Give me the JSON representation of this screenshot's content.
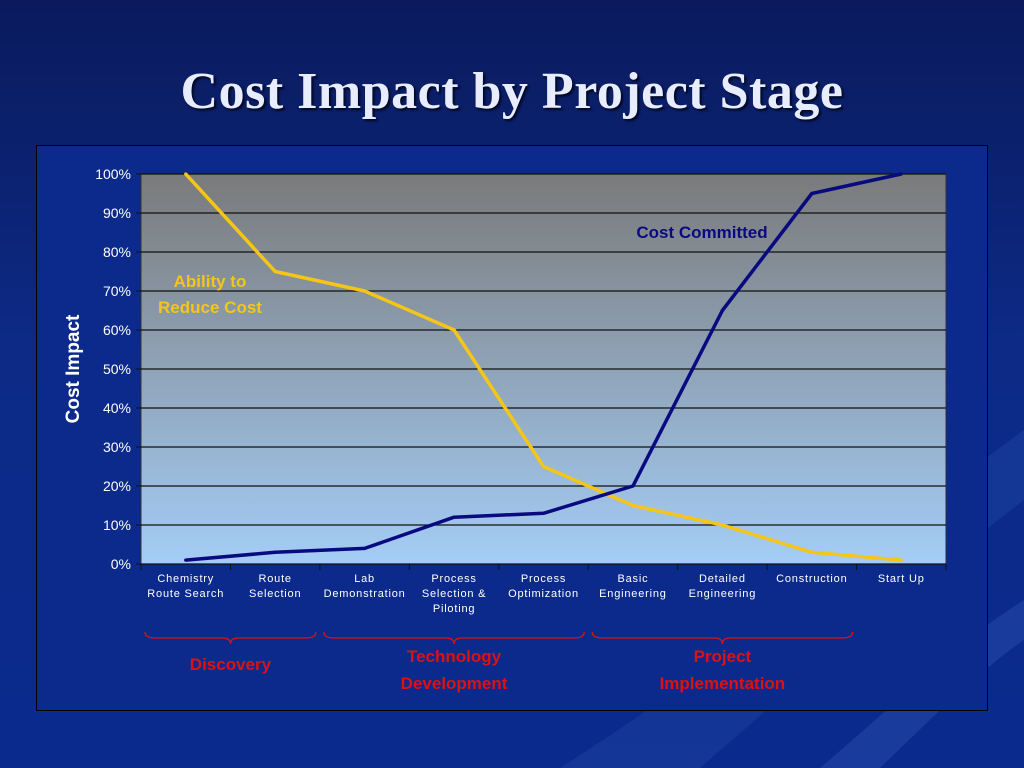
{
  "slide": {
    "title": "Cost Impact by Project Stage"
  },
  "chart_data": {
    "type": "line",
    "ylabel": "Cost Impact",
    "ylim": [
      0,
      100
    ],
    "yticks": [
      "0%",
      "10%",
      "20%",
      "30%",
      "40%",
      "50%",
      "60%",
      "70%",
      "80%",
      "90%",
      "100%"
    ],
    "categories": [
      [
        "Chemistry",
        "Route Search"
      ],
      [
        "Route",
        "Selection"
      ],
      [
        "Lab",
        "Demonstration"
      ],
      [
        "Process",
        "Selection &",
        "Piloting"
      ],
      [
        "Process",
        "Optimization"
      ],
      [
        "Basic",
        "Engineering"
      ],
      [
        "Detailed",
        "Engineering"
      ],
      [
        "Construction"
      ],
      [
        "Start Up"
      ]
    ],
    "series": [
      {
        "name": "Ability to Reduce Cost",
        "label_lines": [
          "Ability to",
          "Reduce Cost"
        ],
        "color": "#f5c518",
        "values": [
          100,
          75,
          70,
          60,
          25,
          15,
          10,
          3,
          1
        ]
      },
      {
        "name": "Cost Committed",
        "label_lines": [
          "Cost Committed"
        ],
        "color": "#0a0a80",
        "values": [
          1,
          3,
          4,
          12,
          13,
          20,
          65,
          95,
          100
        ]
      }
    ],
    "groups": [
      {
        "label_lines": [
          "Discovery"
        ],
        "color": "#e01010"
      },
      {
        "label_lines": [
          "Technology",
          "Development"
        ],
        "color": "#e01010"
      },
      {
        "label_lines": [
          "Project",
          "Implementation"
        ],
        "color": "#e01010"
      }
    ],
    "grid": true,
    "plot_background": [
      "#7a7a7a",
      "#a4cdf6"
    ],
    "colors": {
      "slide_bg": "#0d2a86",
      "title": "#e8ecff",
      "axis_text": "#ffffff"
    }
  }
}
